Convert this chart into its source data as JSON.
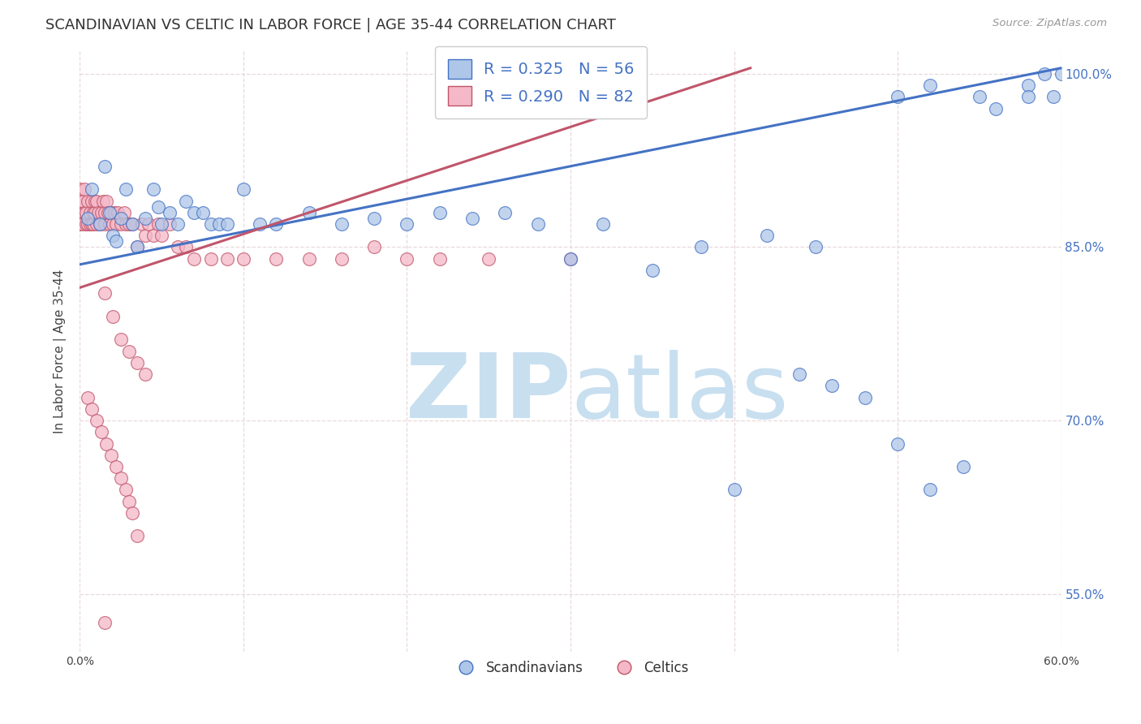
{
  "title": "SCANDINAVIAN VS CELTIC IN LABOR FORCE | AGE 35-44 CORRELATION CHART",
  "source": "Source: ZipAtlas.com",
  "ylabel": "In Labor Force | Age 35-44",
  "xlim": [
    0.0,
    0.6
  ],
  "ylim": [
    0.5,
    1.02
  ],
  "x_ticks": [
    0.0,
    0.1,
    0.2,
    0.3,
    0.4,
    0.5,
    0.6
  ],
  "x_tick_labels": [
    "0.0%",
    "",
    "",
    "",
    "",
    "",
    "60.0%"
  ],
  "y_ticks": [
    0.55,
    0.7,
    0.85,
    1.0
  ],
  "y_tick_labels": [
    "55.0%",
    "70.0%",
    "85.0%",
    "100.0%"
  ],
  "scandinavian_R": 0.325,
  "scandinavian_N": 56,
  "celtic_R": 0.29,
  "celtic_N": 82,
  "scatter_blue_color": "#aec6e8",
  "scatter_pink_color": "#f4b8c8",
  "line_blue_color": "#4472c4",
  "line_pink_color": "#c0556a",
  "legend_text_color": "#4472c4",
  "watermark_zip_color": "#c8dff0",
  "watermark_atlas_color": "#c8dff0",
  "grid_color": "#e8d8dc",
  "blue_line_x0": 0.0,
  "blue_line_y0": 0.835,
  "blue_line_x1": 0.6,
  "blue_line_y1": 1.005,
  "pink_line_x0": 0.0,
  "pink_line_y0": 0.815,
  "pink_line_x1": 0.41,
  "pink_line_y1": 1.005,
  "scand_x": [
    0.005,
    0.007,
    0.012,
    0.015,
    0.018,
    0.02,
    0.022,
    0.025,
    0.028,
    0.032,
    0.035,
    0.04,
    0.045,
    0.048,
    0.05,
    0.055,
    0.06,
    0.065,
    0.07,
    0.075,
    0.08,
    0.085,
    0.09,
    0.1,
    0.11,
    0.12,
    0.14,
    0.16,
    0.18,
    0.2,
    0.22,
    0.24,
    0.26,
    0.28,
    0.3,
    0.32,
    0.35,
    0.38,
    0.42,
    0.45,
    0.5,
    0.52,
    0.55,
    0.58,
    0.59,
    0.6,
    0.595,
    0.58,
    0.56,
    0.54,
    0.52,
    0.5,
    0.48,
    0.46,
    0.44,
    0.4
  ],
  "scand_y": [
    0.875,
    0.9,
    0.87,
    0.92,
    0.88,
    0.86,
    0.855,
    0.875,
    0.9,
    0.87,
    0.85,
    0.875,
    0.9,
    0.885,
    0.87,
    0.88,
    0.87,
    0.89,
    0.88,
    0.88,
    0.87,
    0.87,
    0.87,
    0.9,
    0.87,
    0.87,
    0.88,
    0.87,
    0.875,
    0.87,
    0.88,
    0.875,
    0.88,
    0.87,
    0.84,
    0.87,
    0.83,
    0.85,
    0.86,
    0.85,
    0.98,
    0.99,
    0.98,
    0.99,
    1.0,
    1.0,
    0.98,
    0.98,
    0.97,
    0.66,
    0.64,
    0.68,
    0.72,
    0.73,
    0.74,
    0.64
  ],
  "celtic_x": [
    0.0,
    0.0,
    0.0,
    0.0,
    0.002,
    0.002,
    0.003,
    0.003,
    0.004,
    0.004,
    0.005,
    0.005,
    0.006,
    0.006,
    0.007,
    0.007,
    0.008,
    0.008,
    0.009,
    0.009,
    0.01,
    0.01,
    0.011,
    0.012,
    0.013,
    0.014,
    0.015,
    0.015,
    0.016,
    0.017,
    0.018,
    0.019,
    0.02,
    0.021,
    0.022,
    0.023,
    0.025,
    0.027,
    0.028,
    0.03,
    0.032,
    0.035,
    0.038,
    0.04,
    0.042,
    0.045,
    0.048,
    0.05,
    0.055,
    0.06,
    0.065,
    0.07,
    0.08,
    0.09,
    0.1,
    0.12,
    0.14,
    0.16,
    0.18,
    0.2,
    0.22,
    0.25,
    0.3,
    0.015,
    0.02,
    0.025,
    0.03,
    0.035,
    0.04,
    0.005,
    0.007,
    0.01,
    0.013,
    0.016,
    0.019,
    0.022,
    0.025,
    0.028,
    0.03,
    0.032,
    0.035,
    0.015
  ],
  "celtic_y": [
    0.88,
    0.87,
    0.89,
    0.9,
    0.87,
    0.89,
    0.88,
    0.9,
    0.87,
    0.88,
    0.87,
    0.89,
    0.88,
    0.87,
    0.87,
    0.89,
    0.88,
    0.87,
    0.89,
    0.88,
    0.87,
    0.89,
    0.88,
    0.87,
    0.88,
    0.89,
    0.87,
    0.88,
    0.89,
    0.88,
    0.87,
    0.88,
    0.87,
    0.88,
    0.87,
    0.88,
    0.87,
    0.88,
    0.87,
    0.87,
    0.87,
    0.85,
    0.87,
    0.86,
    0.87,
    0.86,
    0.87,
    0.86,
    0.87,
    0.85,
    0.85,
    0.84,
    0.84,
    0.84,
    0.84,
    0.84,
    0.84,
    0.84,
    0.85,
    0.84,
    0.84,
    0.84,
    0.84,
    0.81,
    0.79,
    0.77,
    0.76,
    0.75,
    0.74,
    0.72,
    0.71,
    0.7,
    0.69,
    0.68,
    0.67,
    0.66,
    0.65,
    0.64,
    0.63,
    0.62,
    0.6,
    0.525
  ]
}
